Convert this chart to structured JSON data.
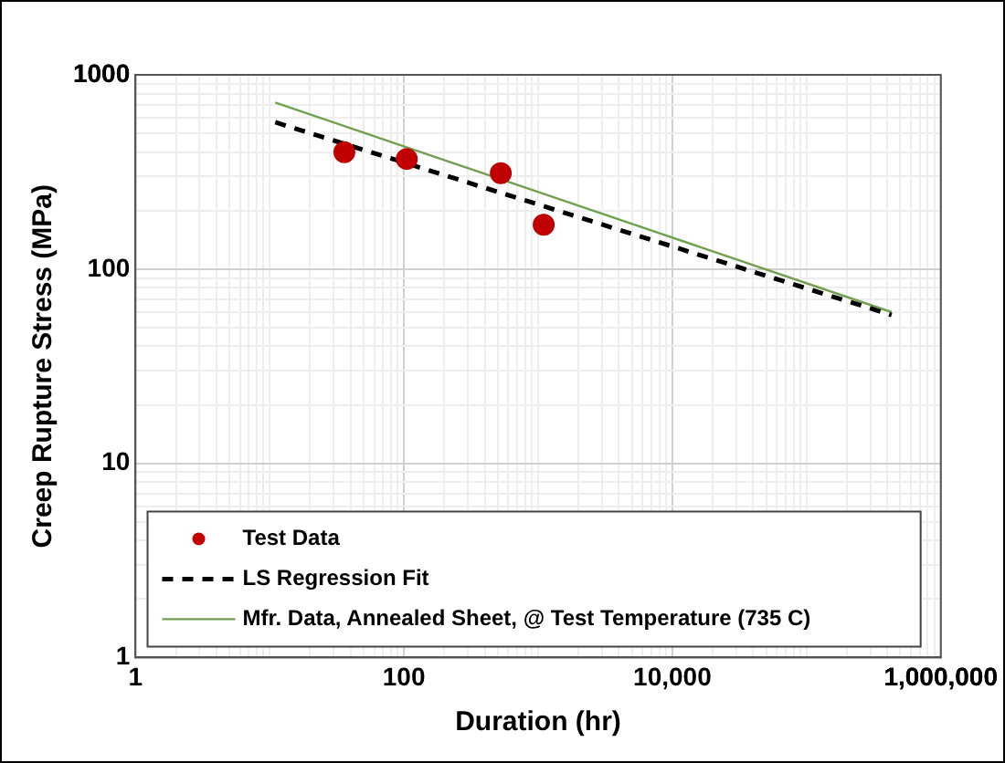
{
  "chart_data": {
    "type": "scatter",
    "xlabel": "Duration (hr)",
    "ylabel": "Creep Rupture Stress (MPa)",
    "log": "xy",
    "xlim": [
      1,
      1000000
    ],
    "xticks": [
      1,
      {
        "value": 100,
        "label": "100"
      },
      {
        "value": 10000,
        "label": "10,000"
      },
      {
        "value": 1000000,
        "label": "1,000,000"
      }
    ],
    "ylim": [
      1,
      1000
    ],
    "yticks": [
      1,
      10,
      100,
      1000
    ],
    "grid": true,
    "legend": "bottom",
    "series": [
      {
        "name": "Test Data",
        "color": "#c00000",
        "marker": "circle",
        "x": [
          36,
          105,
          527,
          1100
        ],
        "values": [
          400,
          369,
          312,
          169
        ]
      },
      {
        "name": "LS Regression Fit",
        "type": "line",
        "color": "#000000",
        "line_style": "dashed",
        "marker": "none",
        "x": [
          11,
          430000
        ],
        "values": [
          570,
          58
        ]
      },
      {
        "name": "Mfr. Data, Annealed Sheet, @ Test Temperature (735 C)",
        "type": "line",
        "color": "#70a050",
        "line_style": "solid",
        "marker": "none",
        "x": [
          11,
          430000
        ],
        "values": [
          720,
          60
        ]
      }
    ]
  }
}
